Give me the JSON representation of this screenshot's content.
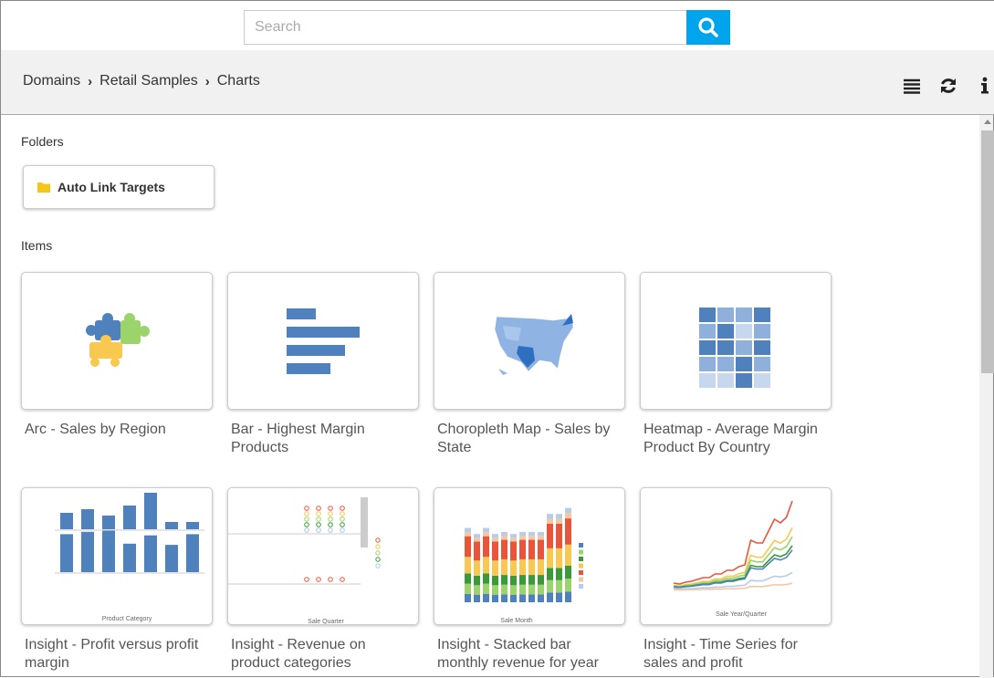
{
  "search": {
    "placeholder": "Search",
    "button_icon": "search-icon"
  },
  "breadcrumb": [
    "Domains",
    "Retail Samples",
    "Charts"
  ],
  "toolbar": {
    "icons": [
      "list-icon",
      "refresh-icon",
      "info-icon"
    ]
  },
  "folders": {
    "heading": "Folders",
    "items": [
      {
        "label": "Auto Link Targets",
        "icon": "folder-icon"
      }
    ]
  },
  "items": {
    "heading": "Items",
    "list": [
      {
        "label": "Arc - Sales by Region",
        "thumb": "puzzle"
      },
      {
        "label": "Bar - Highest Margin Products",
        "thumb": "bar"
      },
      {
        "label": "Choropleth Map - Sales by State",
        "thumb": "map"
      },
      {
        "label": "Heatmap - Average Margin Product By Country",
        "thumb": "heatmap"
      },
      {
        "label": "Insight - Profit versus profit margin",
        "thumb": "insight-bar",
        "axis": "Product Category"
      },
      {
        "label": "Insight - Revenue on product categories",
        "thumb": "insight-scatter",
        "axis": "Sale Quarter"
      },
      {
        "label": "Insight - Stacked bar monthly revenue for year",
        "thumb": "insight-stacked",
        "axis": "Sale Month"
      },
      {
        "label": "Insight - Time Series for sales and profit",
        "thumb": "insight-line",
        "axis": "Sale Year/Quarter"
      }
    ]
  },
  "colors": {
    "accent": "#00a4ec",
    "chart_blue": "#4f81bd",
    "folder": "#f5c518"
  }
}
